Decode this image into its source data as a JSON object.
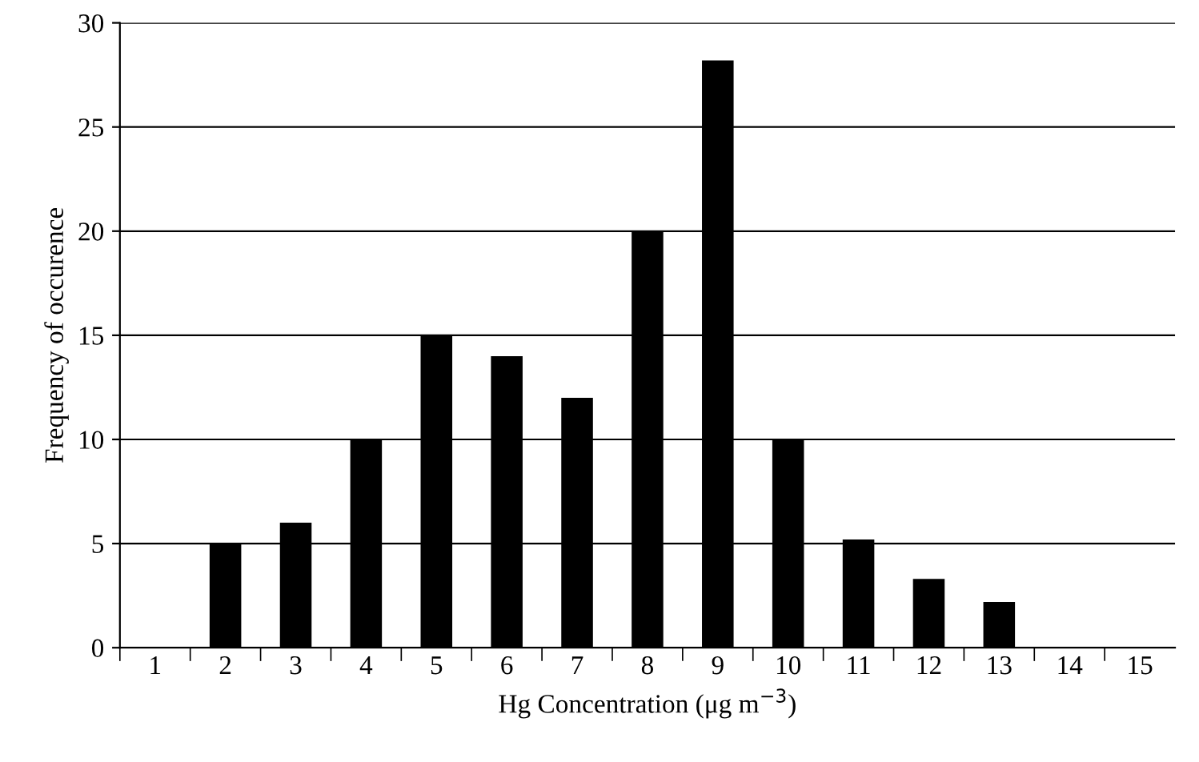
{
  "chart_data": {
    "type": "bar",
    "xlabel": "Hg Concentration (μg m$^{−3}$)",
    "ylabel": "Frequency of occurence",
    "categories": [
      "1",
      "2",
      "3",
      "4",
      "5",
      "6",
      "7",
      "8",
      "9",
      "10",
      "11",
      "12",
      "13",
      "14",
      "15"
    ],
    "values": [
      0,
      5,
      6,
      10,
      15,
      14,
      12,
      20,
      28.2,
      10,
      5.2,
      3.3,
      2.2,
      0,
      0
    ],
    "color": "#000000",
    "ylim": [
      0,
      30
    ],
    "yticks": [
      0,
      5,
      10,
      15,
      20,
      25,
      30
    ],
    "grid": "y",
    "legend": false
  }
}
